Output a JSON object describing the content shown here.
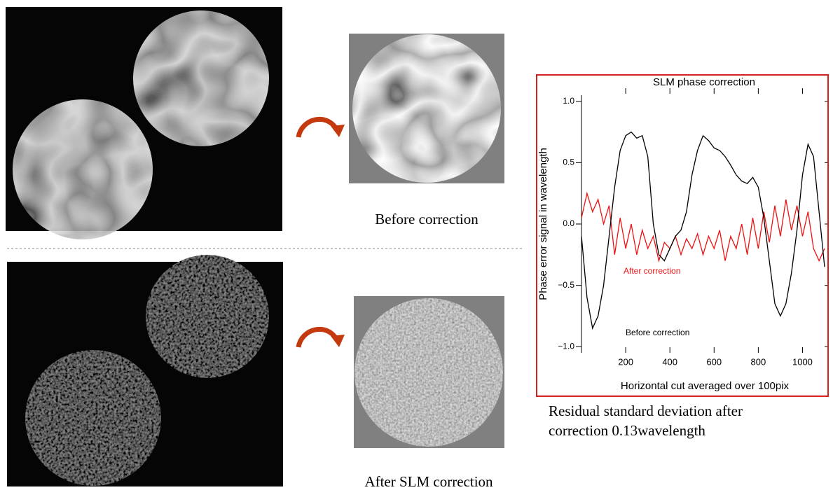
{
  "captions": {
    "before": "Before correction",
    "after": "After SLM correction",
    "residual": [
      "Residual standard deviation after",
      "correction 0.13wavelength"
    ]
  },
  "chart_data": {
    "type": "line",
    "title": "SLM phase correction",
    "x_label": "Horizontal cut averaged over 100pix",
    "y_label": "Phase error signal in wavelength",
    "x": [
      0,
      25,
      50,
      75,
      100,
      125,
      150,
      175,
      200,
      225,
      250,
      275,
      300,
      325,
      350,
      375,
      400,
      425,
      450,
      475,
      500,
      525,
      550,
      575,
      600,
      625,
      650,
      675,
      700,
      725,
      750,
      775,
      800,
      825,
      850,
      875,
      900,
      925,
      950,
      975,
      1000,
      1025,
      1050,
      1075,
      1100
    ],
    "series": [
      {
        "name": "Before correction",
        "color": "#000000",
        "values": [
          -0.1,
          -0.6,
          -0.85,
          -0.75,
          -0.5,
          -0.1,
          0.3,
          0.6,
          0.72,
          0.75,
          0.7,
          0.72,
          0.55,
          0.0,
          -0.25,
          -0.3,
          -0.2,
          -0.1,
          -0.05,
          0.1,
          0.4,
          0.6,
          0.72,
          0.68,
          0.62,
          0.6,
          0.55,
          0.48,
          0.4,
          0.35,
          0.33,
          0.38,
          0.3,
          0.05,
          -0.3,
          -0.65,
          -0.75,
          -0.65,
          -0.4,
          -0.05,
          0.4,
          0.65,
          0.55,
          0.1,
          -0.35
        ]
      },
      {
        "name": "After correction",
        "color": "#ee1111",
        "values": [
          0.05,
          0.25,
          0.1,
          0.2,
          0.0,
          0.15,
          -0.25,
          0.05,
          -0.2,
          0.0,
          -0.25,
          -0.05,
          -0.2,
          -0.1,
          -0.3,
          -0.15,
          -0.2,
          -0.1,
          -0.25,
          -0.12,
          -0.2,
          -0.08,
          -0.25,
          -0.1,
          -0.2,
          -0.05,
          -0.3,
          -0.1,
          -0.2,
          0.0,
          -0.25,
          0.05,
          -0.2,
          0.1,
          -0.15,
          0.15,
          -0.1,
          0.2,
          -0.05,
          0.15,
          -0.1,
          0.1,
          -0.2,
          -0.3,
          -0.2
        ]
      }
    ],
    "xlim": [
      0,
      1100
    ],
    "ylim": [
      -1.05,
      1.05
    ],
    "xticks": [
      200,
      400,
      600,
      800,
      1000
    ],
    "yticks": [
      {
        "value": -1,
        "label": "−1.0"
      },
      {
        "value": -0.5,
        "label": "−0.5"
      },
      {
        "value": 0,
        "label": "0.0"
      },
      {
        "value": 0.5,
        "label": "0.5"
      },
      {
        "value": 1,
        "label": "1.0"
      }
    ],
    "frame_color": "#d42020"
  }
}
